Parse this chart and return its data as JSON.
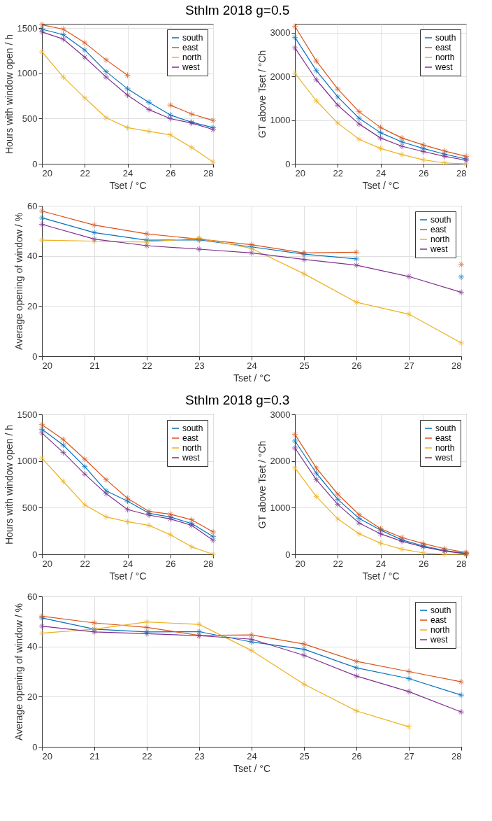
{
  "chart_data": [
    {
      "type": "line",
      "title": "Sthlm 2018 g=0.5",
      "xlabel": "Tset / °C",
      "ylabel": "Hours with window open / h",
      "x": [
        20,
        21,
        22,
        23,
        24,
        25,
        26,
        27,
        28
      ],
      "xlim": [
        20,
        28
      ],
      "xticks": [
        20,
        22,
        24,
        26,
        28
      ],
      "ylim": [
        0,
        1550
      ],
      "yticks": [
        0,
        500,
        1000,
        1500
      ],
      "grid": true,
      "legend": "top right",
      "marker": "cross",
      "line_style": "solid",
      "series": [
        {
          "name": "south",
          "color": "#0072bd",
          "values": [
            1490,
            1430,
            1260,
            1020,
            830,
            680,
            540,
            460,
            400
          ]
        },
        {
          "name": "east",
          "color": "#d95319",
          "values": [
            1540,
            1490,
            1340,
            1150,
            980,
            null,
            650,
            550,
            480
          ]
        },
        {
          "name": "north",
          "color": "#edb120",
          "values": [
            1240,
            960,
            730,
            510,
            400,
            360,
            320,
            180,
            20
          ]
        },
        {
          "name": "west",
          "color": "#7e2f8e",
          "values": [
            1460,
            1380,
            1180,
            960,
            760,
            600,
            500,
            450,
            380
          ]
        }
      ]
    },
    {
      "type": "line",
      "xlabel": "Tset / °C",
      "ylabel": "GT above Tset / °Ch",
      "x": [
        20,
        21,
        22,
        23,
        24,
        25,
        26,
        27,
        28
      ],
      "xlim": [
        20,
        28
      ],
      "xticks": [
        20,
        22,
        24,
        26,
        28
      ],
      "ylim": [
        0,
        3200
      ],
      "yticks": [
        0,
        1000,
        2000,
        3000
      ],
      "grid": true,
      "legend": "top right",
      "marker": "cross",
      "line_style": "solid",
      "series": [
        {
          "name": "south",
          "color": "#0072bd",
          "values": [
            2890,
            2130,
            1530,
            1040,
            710,
            500,
            350,
            220,
            110
          ]
        },
        {
          "name": "east",
          "color": "#d95319",
          "values": [
            3140,
            2350,
            1710,
            1190,
            830,
            590,
            430,
            290,
            170
          ]
        },
        {
          "name": "north",
          "color": "#edb120",
          "values": [
            2070,
            1440,
            930,
            560,
            350,
            210,
            90,
            20,
            0
          ]
        },
        {
          "name": "west",
          "color": "#7e2f8e",
          "values": [
            2650,
            1920,
            1340,
            910,
            590,
            400,
            280,
            170,
            80
          ]
        }
      ]
    },
    {
      "type": "line",
      "xlabel": "Tset / °C",
      "ylabel": "Average opening of window / %",
      "x": [
        20,
        21,
        22,
        23,
        24,
        25,
        26,
        27,
        28
      ],
      "xlim": [
        20,
        28
      ],
      "xticks": [
        20,
        21,
        22,
        23,
        24,
        25,
        26,
        27,
        28
      ],
      "ylim": [
        0,
        60
      ],
      "yticks": [
        0,
        20,
        40,
        60
      ],
      "grid": true,
      "legend": "top right",
      "marker": "cross",
      "line_style": "solid",
      "series": [
        {
          "name": "south",
          "color": "#0072bd",
          "values": [
            55.2,
            49.3,
            46.3,
            46.4,
            43.6,
            40.7,
            38.8,
            null,
            31.6
          ]
        },
        {
          "name": "east",
          "color": "#d95319",
          "values": [
            57.9,
            52.3,
            48.8,
            46.7,
            44.5,
            41.2,
            41.5,
            null,
            36.6
          ]
        },
        {
          "name": "north",
          "color": "#edb120",
          "values": [
            46.3,
            45.9,
            45.5,
            47.1,
            43.0,
            32.9,
            21.5,
            16.8,
            5.3
          ]
        },
        {
          "name": "west",
          "color": "#7e2f8e",
          "values": [
            52.6,
            46.7,
            44.1,
            42.7,
            41.2,
            38.6,
            36.3,
            31.8,
            25.5
          ]
        }
      ]
    },
    {
      "type": "line",
      "title": "Sthlm 2018 g=0.3",
      "xlabel": "Tset / °C",
      "ylabel": "Hours with window open / h",
      "x": [
        20,
        21,
        22,
        23,
        24,
        25,
        26,
        27,
        28
      ],
      "xlim": [
        20,
        28
      ],
      "xticks": [
        20,
        22,
        24,
        26,
        28
      ],
      "ylim": [
        0,
        1500
      ],
      "yticks": [
        0,
        500,
        1000,
        1500
      ],
      "grid": true,
      "legend": "top right",
      "marker": "cross",
      "line_style": "solid",
      "series": [
        {
          "name": "south",
          "color": "#0072bd",
          "values": [
            1340,
            1170,
            940,
            680,
            570,
            440,
            400,
            330,
            190
          ]
        },
        {
          "name": "east",
          "color": "#d95319",
          "values": [
            1390,
            1230,
            1020,
            800,
            600,
            460,
            430,
            370,
            240
          ]
        },
        {
          "name": "north",
          "color": "#edb120",
          "values": [
            1030,
            780,
            530,
            400,
            350,
            310,
            210,
            80,
            0
          ]
        },
        {
          "name": "west",
          "color": "#7e2f8e",
          "values": [
            1300,
            1090,
            860,
            650,
            480,
            420,
            380,
            310,
            150
          ]
        }
      ]
    },
    {
      "type": "line",
      "xlabel": "Tset / °C",
      "ylabel": "GT above Tset / °Ch",
      "x": [
        20,
        21,
        22,
        23,
        24,
        25,
        26,
        27,
        28
      ],
      "xlim": [
        20,
        28
      ],
      "xticks": [
        20,
        22,
        24,
        26,
        28
      ],
      "ylim": [
        0,
        3000
      ],
      "yticks": [
        0,
        1000,
        2000,
        3000
      ],
      "grid": true,
      "legend": "top right",
      "marker": "cross",
      "line_style": "solid",
      "series": [
        {
          "name": "south",
          "color": "#0072bd",
          "values": [
            2430,
            1740,
            1180,
            770,
            520,
            310,
            180,
            80,
            20
          ]
        },
        {
          "name": "east",
          "color": "#d95319",
          "values": [
            2570,
            1850,
            1290,
            850,
            550,
            360,
            230,
            120,
            40
          ]
        },
        {
          "name": "north",
          "color": "#edb120",
          "values": [
            1850,
            1240,
            760,
            440,
            240,
            110,
            30,
            0,
            0
          ]
        },
        {
          "name": "west",
          "color": "#7e2f8e",
          "values": [
            2280,
            1600,
            1070,
            670,
            440,
            280,
            160,
            70,
            10
          ]
        }
      ]
    },
    {
      "type": "line",
      "xlabel": "Tset / °C",
      "ylabel": "Average opening of window / %",
      "x": [
        20,
        21,
        22,
        23,
        24,
        25,
        26,
        27,
        28
      ],
      "xlim": [
        20,
        28
      ],
      "xticks": [
        20,
        21,
        22,
        23,
        24,
        25,
        26,
        27,
        28
      ],
      "ylim": [
        0,
        60
      ],
      "yticks": [
        0,
        20,
        40,
        60
      ],
      "grid": true,
      "legend": "top right",
      "marker": "cross",
      "line_style": "solid",
      "series": [
        {
          "name": "south",
          "color": "#0072bd",
          "values": [
            51.4,
            46.9,
            45.8,
            45.9,
            41.8,
            38.9,
            31.5,
            27.2,
            20.6
          ]
        },
        {
          "name": "east",
          "color": "#d95319",
          "values": [
            52.1,
            49.4,
            47.6,
            44.4,
            44.6,
            41.0,
            34.1,
            30.0,
            25.9
          ]
        },
        {
          "name": "north",
          "color": "#edb120",
          "values": [
            45.3,
            46.9,
            49.8,
            48.8,
            38.4,
            25.0,
            14.3,
            8.0,
            null
          ]
        },
        {
          "name": "west",
          "color": "#7e2f8e",
          "values": [
            48.1,
            45.8,
            45.1,
            44.3,
            42.9,
            36.5,
            28.2,
            22.0,
            13.9
          ]
        }
      ]
    }
  ]
}
